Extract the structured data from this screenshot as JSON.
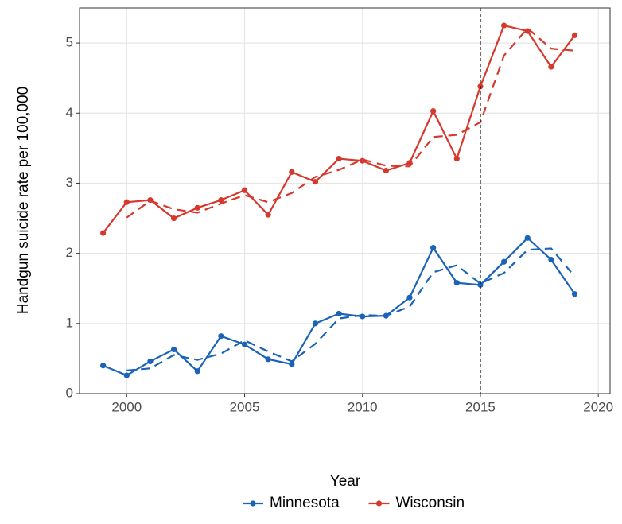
{
  "chart_data": {
    "type": "line",
    "x": [
      1999,
      2000,
      2001,
      2002,
      2003,
      2004,
      2005,
      2006,
      2007,
      2008,
      2009,
      2010,
      2011,
      2012,
      2013,
      2014,
      2015,
      2016,
      2017,
      2018,
      2019
    ],
    "series": [
      {
        "name": "Minnesota",
        "color": "#1a63b8",
        "values": [
          0.4,
          0.26,
          0.46,
          0.63,
          0.32,
          0.82,
          0.7,
          0.49,
          0.42,
          1.0,
          1.14,
          1.1,
          1.11,
          1.37,
          2.08,
          1.58,
          1.55,
          1.88,
          2.22,
          1.91,
          1.42
        ],
        "trend": [
          null,
          0.33,
          0.36,
          0.55,
          0.48,
          0.57,
          0.76,
          0.6,
          0.46,
          0.71,
          1.07,
          1.12,
          1.11,
          1.24,
          1.73,
          1.83,
          1.57,
          1.72,
          2.05,
          2.07,
          1.67
        ]
      },
      {
        "name": "Wisconsin",
        "color": "#d7382d",
        "values": [
          2.29,
          2.73,
          2.76,
          2.5,
          2.65,
          2.76,
          2.9,
          2.55,
          3.16,
          3.02,
          3.35,
          3.32,
          3.18,
          3.29,
          4.03,
          3.35,
          4.38,
          5.25,
          5.17,
          4.66,
          5.11
        ],
        "trend": [
          null,
          2.51,
          2.75,
          2.63,
          2.58,
          2.71,
          2.83,
          2.73,
          2.86,
          3.09,
          3.19,
          3.34,
          3.25,
          3.24,
          3.66,
          3.69,
          3.87,
          4.82,
          5.21,
          4.92,
          4.89
        ]
      }
    ],
    "x_label": "Year",
    "y_label": "Handgun suicide rate per 100,000",
    "xlim": [
      1998,
      2020.5
    ],
    "xticks": [
      2000,
      2005,
      2010,
      2015,
      2020
    ],
    "ylim": [
      0,
      5.5
    ],
    "yticks": [
      0,
      1,
      2,
      3,
      4,
      5
    ],
    "vline": 2015,
    "grid": true,
    "legend": "bottom"
  }
}
